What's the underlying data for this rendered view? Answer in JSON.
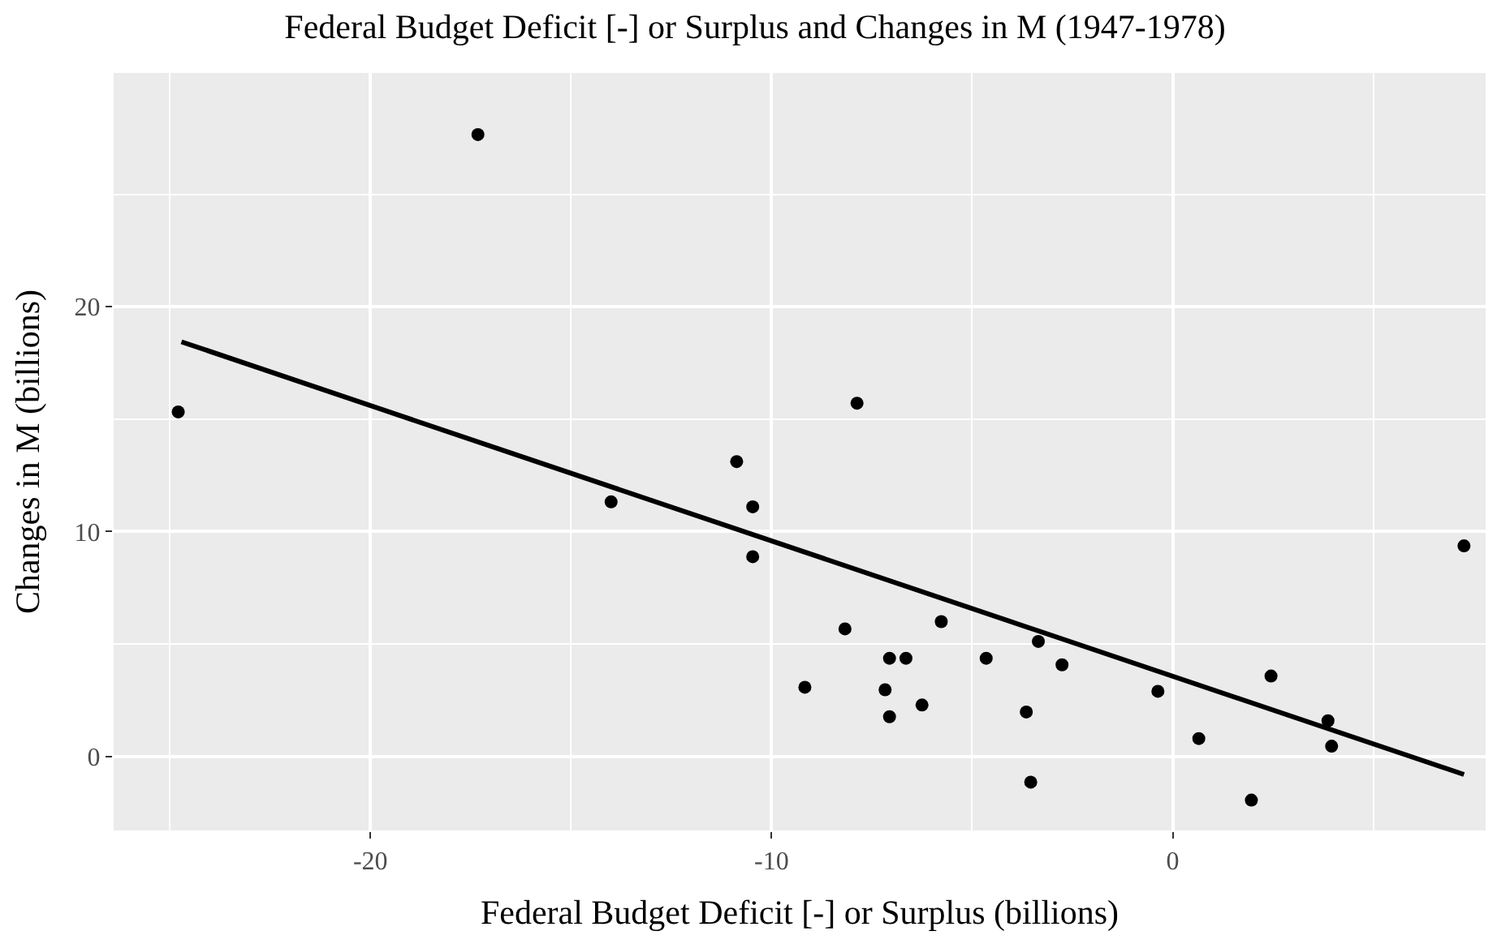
{
  "chart_data": {
    "type": "scatter",
    "title": "Federal Budget Deficit [-] or Surplus and Changes in M (1947-1978)",
    "xlabel": "Federal Budget Deficit [-] or Surplus (billions)",
    "ylabel": "Changes in M (billions)",
    "xlim": [
      -26.4,
      7.8
    ],
    "ylim": [
      -3.3,
      30.4
    ],
    "xticks": [
      -20,
      -10,
      0
    ],
    "yticks": [
      0,
      10,
      20
    ],
    "grid": true,
    "marker": "circle",
    "series": [
      {
        "color": "#000000",
        "x": [
          -24.79,
          -17.32,
          -14.0,
          -10.87,
          -10.47,
          -10.47,
          -9.17,
          -8.17,
          -7.87,
          -7.17,
          -7.06,
          -7.06,
          -6.65,
          -6.25,
          -5.77,
          -4.65,
          -3.65,
          -3.54,
          -3.35,
          -2.76,
          -0.37,
          0.65,
          1.96,
          2.45,
          3.87,
          3.96,
          7.26
        ],
        "values": [
          15.32,
          27.66,
          11.32,
          13.11,
          11.1,
          8.88,
          3.07,
          5.67,
          15.71,
          2.96,
          4.36,
          1.76,
          4.36,
          2.28,
          5.99,
          4.36,
          1.97,
          -1.15,
          5.11,
          4.07,
          2.89,
          0.79,
          -1.95,
          3.57,
          1.58,
          0.45,
          9.36
        ]
      },
      {
        "type": "line",
        "color": "#000000",
        "x": [
          -24.71,
          7.26
        ],
        "values": [
          18.44,
          -0.81
        ],
        "marker": "none",
        "line_style": "solid"
      }
    ]
  }
}
